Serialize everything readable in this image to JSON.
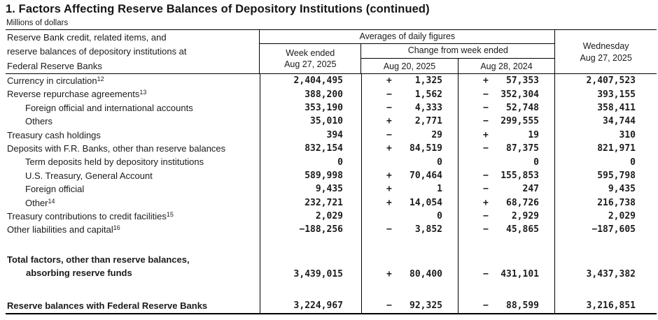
{
  "page": {
    "title": "1. Factors Affecting Reserve Balances of Depository Institutions (continued)",
    "units": "Millions of dollars"
  },
  "colors": {
    "text": "#1a1a1a",
    "border": "#000000",
    "background": "#ffffff"
  },
  "table": {
    "header": {
      "stub_line1": "Reserve Bank credit, related items, and",
      "stub_line2": "reserve balances of depository institutions at",
      "stub_line3": "Federal Reserve Banks",
      "averages": "Averages of daily figures",
      "week_ended_line1": "Week ended",
      "week_ended_line2": "Aug 27, 2025",
      "change_from": "Change from week ended",
      "change_col1": "Aug 20, 2025",
      "change_col2": "Aug 28, 2024",
      "wednesday_line1": "Wednesday",
      "wednesday_line2": "Aug 27, 2025"
    },
    "rows": [
      {
        "label": "Currency in circulation",
        "sup": "12",
        "indent": 0,
        "week": "2,404,495",
        "s1": "+",
        "c1": "1,325",
        "s2": "+",
        "c2": "57,353",
        "wed": "2,407,523"
      },
      {
        "label": "Reverse repurchase agreements",
        "sup": "13",
        "indent": 0,
        "week": "388,200",
        "s1": "−",
        "c1": "1,562",
        "s2": "−",
        "c2": "352,304",
        "wed": "393,155"
      },
      {
        "label": "Foreign official and international accounts",
        "indent": 1,
        "week": "353,190",
        "s1": "−",
        "c1": "4,333",
        "s2": "−",
        "c2": "52,748",
        "wed": "358,411"
      },
      {
        "label": "Others",
        "indent": 1,
        "week": "35,010",
        "s1": "+",
        "c1": "2,771",
        "s2": "−",
        "c2": "299,555",
        "wed": "34,744"
      },
      {
        "label": "Treasury cash holdings",
        "indent": 0,
        "week": "394",
        "s1": "−",
        "c1": "29",
        "s2": "+",
        "c2": "19",
        "wed": "310"
      },
      {
        "label": "Deposits with F.R. Banks, other than reserve balances",
        "indent": 0,
        "week": "832,154",
        "s1": "+",
        "c1": "84,519",
        "s2": "−",
        "c2": "87,375",
        "wed": "821,971"
      },
      {
        "label": "Term deposits held by depository institutions",
        "indent": 1,
        "week": "0",
        "s1": "",
        "c1": "0",
        "s2": "",
        "c2": "0",
        "wed": "0"
      },
      {
        "label": "U.S. Treasury, General Account",
        "indent": 1,
        "week": "589,998",
        "s1": "+",
        "c1": "70,464",
        "s2": "−",
        "c2": "155,853",
        "wed": "595,798"
      },
      {
        "label": "Foreign official",
        "indent": 1,
        "week": "9,435",
        "s1": "+",
        "c1": "1",
        "s2": "−",
        "c2": "247",
        "wed": "9,435"
      },
      {
        "label": "Other",
        "sup": "14",
        "indent": 1,
        "week": "232,721",
        "s1": "+",
        "c1": "14,054",
        "s2": "+",
        "c2": "68,726",
        "wed": "216,738"
      },
      {
        "label": "Treasury contributions to credit facilities",
        "sup": "15",
        "indent": 0,
        "week": "2,029",
        "s1": "",
        "c1": "0",
        "s2": "−",
        "c2": "2,929",
        "wed": "2,029"
      },
      {
        "label": "Other liabilities and capital",
        "sup": "16",
        "indent": 0,
        "week": "−188,256",
        "s1": "−",
        "c1": "3,852",
        "s2": "−",
        "c2": "45,865",
        "wed": "−187,605"
      }
    ],
    "total_row": {
      "label_line1": "Total factors, other than reserve balances,",
      "label_line2": "absorbing reserve funds",
      "week": "3,439,015",
      "s1": "+",
      "c1": "80,400",
      "s2": "−",
      "c2": "431,101",
      "wed": "3,437,382"
    },
    "reserve_row": {
      "label": "Reserve balances with Federal Reserve Banks",
      "week": "3,224,967",
      "s1": "−",
      "c1": "92,325",
      "s2": "−",
      "c2": "88,599",
      "wed": "3,216,851"
    }
  }
}
